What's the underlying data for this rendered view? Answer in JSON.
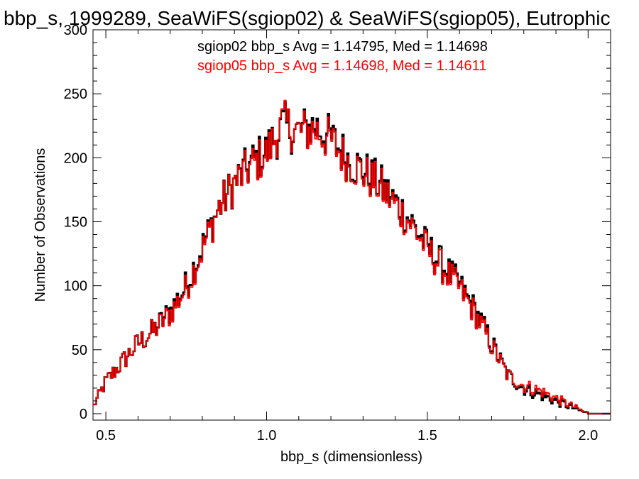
{
  "chart_data": {
    "type": "histogram-step",
    "title": "bbp_s, 1999289, SeaWiFS(sgiop02) & SeaWiFS(sgiop05), Eutrophic",
    "xlabel": "bbp_s (dimensionless)",
    "ylabel": "Number of Observations",
    "xlim": [
      0.46,
      2.07
    ],
    "ylim": [
      -5,
      300
    ],
    "x_ticks": [
      0.5,
      1.0,
      1.5,
      2.0
    ],
    "x_tick_labels": [
      "0.5",
      "1.0",
      "1.5",
      "2.0"
    ],
    "y_ticks": [
      0,
      50,
      100,
      150,
      200,
      250,
      300
    ],
    "y_tick_labels": [
      "0",
      "50",
      "100",
      "150",
      "200",
      "250",
      "300"
    ],
    "grid": false,
    "bin_start": 0.46,
    "bin_width": 0.005,
    "annotations": [
      {
        "text": "sgiop02 bbp_s Avg = 1.14795, Med = 1.14698",
        "color": "#000000"
      },
      {
        "text": "sgiop05 bbp_s Avg = 1.14698, Med = 1.14611",
        "color": "#ff0000"
      }
    ],
    "series": [
      {
        "color": "#000000",
        "control": [
          [
            0.46,
            5
          ],
          [
            0.5,
            25
          ],
          [
            0.55,
            40
          ],
          [
            0.6,
            55
          ],
          [
            0.65,
            65
          ],
          [
            0.7,
            80
          ],
          [
            0.75,
            100
          ],
          [
            0.8,
            130
          ],
          [
            0.85,
            160
          ],
          [
            0.9,
            180
          ],
          [
            0.95,
            195
          ],
          [
            1.0,
            205
          ],
          [
            1.05,
            225
          ],
          [
            1.1,
            220
          ],
          [
            1.15,
            225
          ],
          [
            1.2,
            215
          ],
          [
            1.25,
            200
          ],
          [
            1.3,
            190
          ],
          [
            1.35,
            180
          ],
          [
            1.4,
            165
          ],
          [
            1.45,
            150
          ],
          [
            1.5,
            130
          ],
          [
            1.55,
            115
          ],
          [
            1.6,
            100
          ],
          [
            1.65,
            80
          ],
          [
            1.7,
            55
          ],
          [
            1.75,
            30
          ],
          [
            1.8,
            20
          ],
          [
            1.85,
            15
          ],
          [
            1.9,
            10
          ],
          [
            1.95,
            5
          ],
          [
            2.0,
            0
          ],
          [
            2.07,
            0
          ]
        ]
      },
      {
        "color": "#ff0000",
        "control": [
          [
            0.46,
            5
          ],
          [
            0.5,
            25
          ],
          [
            0.55,
            40
          ],
          [
            0.6,
            55
          ],
          [
            0.65,
            65
          ],
          [
            0.7,
            78
          ],
          [
            0.75,
            98
          ],
          [
            0.8,
            128
          ],
          [
            0.85,
            160
          ],
          [
            0.9,
            180
          ],
          [
            0.95,
            193
          ],
          [
            1.0,
            203
          ],
          [
            1.05,
            227
          ],
          [
            1.1,
            220
          ],
          [
            1.15,
            222
          ],
          [
            1.2,
            213
          ],
          [
            1.25,
            198
          ],
          [
            1.3,
            188
          ],
          [
            1.35,
            178
          ],
          [
            1.4,
            163
          ],
          [
            1.45,
            148
          ],
          [
            1.5,
            128
          ],
          [
            1.55,
            113
          ],
          [
            1.6,
            98
          ],
          [
            1.65,
            78
          ],
          [
            1.7,
            53
          ],
          [
            1.75,
            30
          ],
          [
            1.8,
            22
          ],
          [
            1.85,
            18
          ],
          [
            1.9,
            12
          ],
          [
            1.95,
            6
          ],
          [
            2.0,
            0
          ],
          [
            2.07,
            0
          ]
        ]
      }
    ]
  }
}
